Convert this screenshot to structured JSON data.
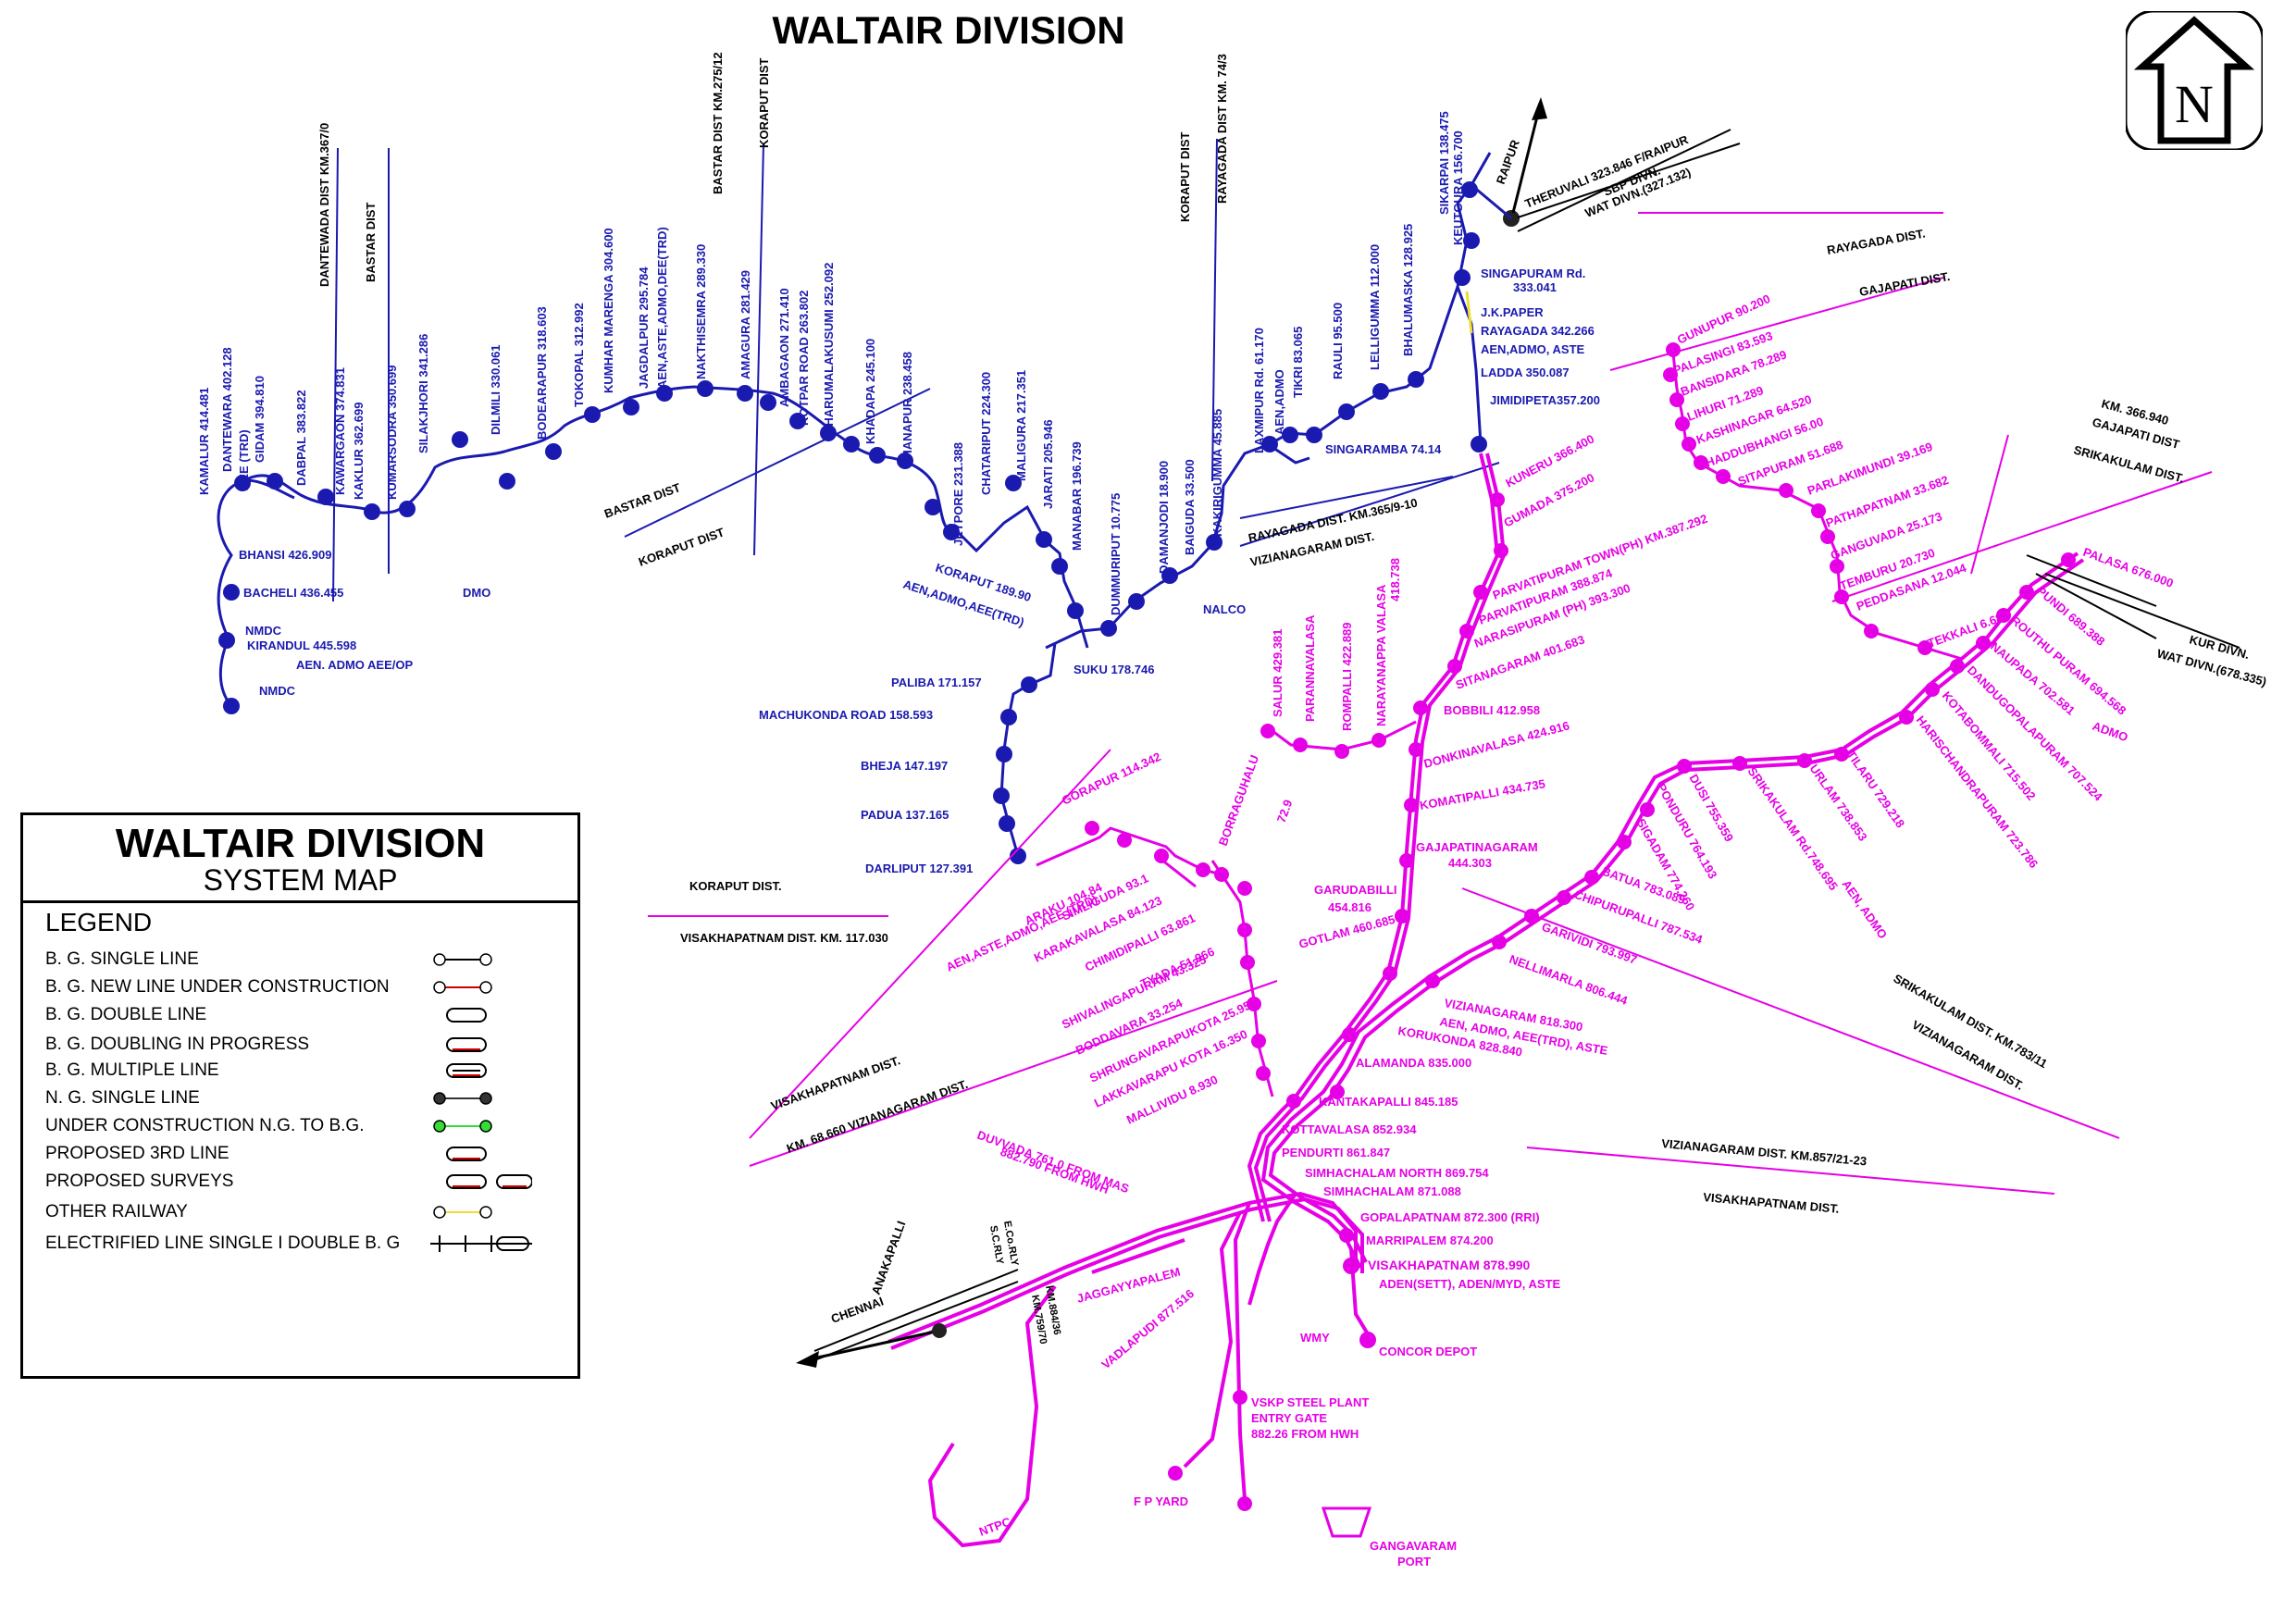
{
  "title": "WALTAIR DIVISION",
  "legend": {
    "title": "WALTAIR DIVISION",
    "subtitle": "SYSTEM MAP",
    "heading": "LEGEND",
    "items": [
      {
        "label": "B. G. SINGLE LINE",
        "style": "single",
        "color": "#000000"
      },
      {
        "label": "B. G. NEW LINE UNDER CONSTRUCTION",
        "style": "single",
        "color": "#cc0000"
      },
      {
        "label": "B. G. DOUBLE LINE",
        "style": "double",
        "color": "#000000"
      },
      {
        "label": "B. G. DOUBLING IN PROGRESS",
        "style": "double-red",
        "color": "#000000"
      },
      {
        "label": "B. G. MULTIPLE LINE",
        "style": "multiple",
        "color": "#000000"
      },
      {
        "label": "N. G. SINGLE LINE",
        "style": "ng",
        "color": "#333333"
      },
      {
        "label": "UNDER CONSTRUCTION N.G. TO B.G.",
        "style": "green",
        "color": "#33dd33"
      },
      {
        "label": "PROPOSED 3RD LINE",
        "style": "third",
        "color": "#cc0000"
      },
      {
        "label": "PROPOSED SURVEYS",
        "style": "survey",
        "color": "#cc0000"
      },
      {
        "label": "OTHER RAILWAY",
        "style": "yellow",
        "color": "#eedd33"
      },
      {
        "label": "ELECTRIFIED LINE SINGLE I DOUBLE B. G",
        "style": "electric",
        "color": "#000000"
      }
    ]
  },
  "north_symbol": "N",
  "colors": {
    "ecor_blue": "#1a1ab0",
    "ecor_magenta": "#e600e6",
    "boundary": "#1a1ab0",
    "ink": "#000000"
  },
  "labels": {
    "kamalur": "KAMALUR 414.481",
    "dantewara": "DANTEWARA 402.128",
    "aee_trd": "AEE (TRD)",
    "gidam": "GIDAM 394.810",
    "dabpal": "DABPAL 383.822",
    "kawaragaon": "KAWARGAON 374.831",
    "kaklur": "KAKLUR 362.699",
    "kumarsodra": "KUMARSODRA 350.699",
    "silakjhori": "SILAKJHORI 341.286",
    "dilmili": "DILMILI 330.061",
    "bodearapur": "BODEARAPUR 318.603",
    "tokopal": "TOKOPAL 312.992",
    "kumhar": "KUMHAR MARENGA 304.600",
    "jagdalpur": "JAGDALPUR 295.784",
    "jagdalpur2": "AEN,ASTE,ADMO,DEE(TRD)",
    "nakthisemra": "NAKTHISEMRA 289.330",
    "amaguda": "AMAGURA 281.429",
    "ambagaon": "AMBAGAON 271.410",
    "kotpar": "KOTPAR ROAD 263.802",
    "charumal": "CHARUMALAKUSUMI 252.092",
    "khadapa": "KHADAPA 245.100",
    "dhanapur": "DHANAPUR 238.458",
    "jeypore": "JEYPORE 231.388",
    "chataripu": "CHATARIPUT 224.300",
    "maliguda": "MALIGURA 217.351",
    "jarati": "JARATI 205.946",
    "manabar": "MANABAR 196.739",
    "dummuriput": "DUMMURIPUT 10.775",
    "damanjodi": "DAMANJODI 18.900",
    "baiguda": "BAIGUDA 33.500",
    "kakirigumma": "KAKIRIGUMMA 45.885",
    "laxmipur": "LAXMIPUR Rd. 61.170",
    "aen_admo_a": "AEN,ADMO",
    "tikri": "TIKRI 83.065",
    "rauli": "RAULI 95.500",
    "lelligumma": "LELLIGUMMA 112.000",
    "bhalumaska": "BHALUMASKA 128.925",
    "sikarpai": "SIKARPAI 138.475",
    "keutgura": "KEUTGURA 156.700",
    "singapuram": "SINGAPURAM Rd.",
    "singapuram2": "333.041",
    "jkpaper": "J.K.PAPER",
    "rayagada": "RAYAGADA 342.266",
    "rayagada2": "AEN,ADMO, ASTE",
    "ladda": "LADDA 350.087",
    "jimidipeta": "JIMIDIPETA357.200",
    "singaramba": "SINGARAMBA 74.14",
    "theruvali": "THERUVALI 323.846 F/RAIPUR",
    "sbp_divn": "SBP DIVN.",
    "wat_divn": "WAT DIVN.(327.132)",
    "raipur": "RAIPUR",
    "rayagada_dist": "RAYAGADA DIST.",
    "gajapati_dist": "GAJAPATI DIST.",
    "bhansi": "BHANSI 426.909",
    "bacheli": "BACHELI 436.455",
    "dmo": "DMO",
    "nmdc1": "NMDC",
    "kirandul": "KIRANDUL 445.598",
    "aen_admo_aeeop": "AEN. ADMO  AEE/OP",
    "nmdc2": "NMDC",
    "koraput": "KORAPUT 189.90",
    "koraput2": "AEN,ADMO,AEE(TRD)",
    "nalco": "NALCO",
    "suku": "SUKU 178.746",
    "paliba": "PALIBA 171.157",
    "machukonda": "MACHUKONDA ROAD 158.593",
    "bheja": "BHEJA 147.197",
    "padua": "PADUA 137.165",
    "darliput": "DARLIPUT 127.391",
    "dantewada_dist": "DANTEWADA DIST KM.367/0",
    "bastar_dist_top": "BASTAR DIST",
    "bastar_dist_km": "BASTAR DIST KM.275/12",
    "koraput_dist_top": "KORAPUT DIST",
    "koraput_dist_km": "KORAPUT DIST",
    "rayagada_dist_km": "RAYAGADA DIST KM. 74/3",
    "bastar_dist_mid": "BASTAR DIST",
    "koraput_dist_mid": "KORAPUT DIST",
    "rayagada_km365": "RAYAGADA DIST. KM.365/9-10",
    "vizianagaram_dist_a": "VIZIANAGARAM DIST.",
    "kuneru": "KUNERU 366.400",
    "gumada": "GUMADA 375.200",
    "parvatipuram_town": "PARVATIPURAM TOWN(PH) KM.387.292",
    "parvatipuram": "PARVATIPURAM 388.874",
    "narasipuram": "NARASIPURAM (PH) 393.300",
    "sitanagaram": "SITANAGARAM 401.683",
    "bobbili": "BOBBILI 412.958",
    "donkinavalasa": "DONKINAVALASA 424.916",
    "komatipalli": "KOMATIPALLI 434.735",
    "gajapatinagaram": "GAJAPATINAGARAM",
    "gajapatinagaram2": "444.303",
    "garudabilli": "GARUDABILLI",
    "garudabilli2": "454.816",
    "gotlam": "GOTLAM 460.685",
    "salur": "SALUR 429.381",
    "parannavalasa": "PARANNAVALASA",
    "rompalli": "ROMPALLI 422.889",
    "narayanappa": "NARAYANAPPA VALASA",
    "narayanappa2": "418.738",
    "gunupur": "GUNUPUR 90.200",
    "palasingi": "PALASINGI 83.593",
    "bansidara": "BANSIDARA 78.289",
    "lihuri": "LIHURI 71.289",
    "kashinagar": "KASHINAGAR 64.520",
    "haddubhangi": "HADDUBHANGI 56.00",
    "sitapuram": "SITAPURAM 51.688",
    "parlakimundi": "PARLAKIMUNDI 39.169",
    "pathapatnam": "PATHAPATNAM 33.682",
    "ganguvada": "GANGUVADA 25.173",
    "temburu": "TEMBURU 20.730",
    "peddasana": "PEDDASANA 12.044",
    "tekkali": "TEKKALI 6.68",
    "km366": "KM. 366.940",
    "gajapati_dist2": "GAJAPATI DIST",
    "srikakulam_dist": "SRIKAKULAM DIST.",
    "palasa": "PALASA 676.000",
    "pundi": "PUNDI 689.388",
    "routhu": "ROUTHU PURAM 694.568",
    "naupada": "NAUPADA 702.581",
    "admo": "ADMO",
    "dandugopalapuram": "DANDUGOPALAPURAM 707.524",
    "kotabommali": "KOTABOMMALI 715.502",
    "harischandrapuram": "HARISCHANDRAPURAM 723.786",
    "tilaru": "TILARU 729.218",
    "urlam": "URLAM 738.853",
    "srikakulam_rd": "SRIKAKULAM Rd.748.695",
    "aen_admo_b": "AEN, ADMO",
    "dusi": "DUSI 755.359",
    "ponduru": "PONDURU 764.193",
    "sigadam": "SIGADAM 774.260",
    "batua": "BATUA 783.089",
    "chipurupalli": "CHIPURUPALLI 787.534",
    "garividi": "GARIVIDI 793.997",
    "nellimarla": "NELLIMARLA 806.444",
    "vizianagaram": "VIZIANAGARAM 818.300",
    "vizianagaram2": "AEN, ADMO, AEE(TRD), ASTE",
    "korukonda": "KORUKONDA 828.840",
    "alamanda": "ALAMANDA 835.000",
    "kantakapalli": "KANTAKAPALLI 845.185",
    "kottavalasa": "KOTTAVALASA 852.934",
    "pendurti": "PENDURTI 861.847",
    "simhachalam_north": "SIMHACHALAM NORTH 869.754",
    "simhachalam": "SIMHACHALAM 871.088",
    "gopalapatnam": "GOPALAPATNAM 872.300 (RRI)",
    "marripalem": "MARRIPALEM 874.200",
    "visakhapatnam": "VISAKHAPATNAM 878.990",
    "visakhapatnam2": "ADEN(SETT), ADEN/MYD, ASTE",
    "concor": "CONCOR DEPOT",
    "wmy": "WMY",
    "kur_divn": "KUR DIVN.",
    "wat_divn2": "WAT DIVN.(678.335)",
    "srikakulam_km": "SRIKAKULAM DIST. KM.783/11",
    "vizianagaram_dist_b": "VIZIANAGARAM DIST.",
    "vizianagaram_km857": "VIZIANAGARAM DIST. KM.857/21-23",
    "visakhapatnam_dist": "VISAKHAPATNAM DIST.",
    "gorapur": "GORAPUR 114.342",
    "borraguhalu": "BORRAGUHALU",
    "borraguhalu2": "72.9",
    "araku": "ARAKU 104.84",
    "araku2": "AEN,ASTE,ADMO,AEE (TRD)",
    "simliguda": "SIMLIGUDA 93.1",
    "karakavalasa": "KARAKAVALASA 84.123",
    "chimidipalli": "CHIMIDIPALLI 63.861",
    "tyada": "TYADA 51.966",
    "shivalingapuram": "SHIVALINGAPURAM 43.325",
    "boddavara": "BODDAVARA 33.254",
    "shrungavarapukota": "SHRUNGAVARAPUKOTA 25.959",
    "lakkavarapu": "LAKKAVARAPU KOTA 16.350",
    "mallividu": "MALLIVIDU 8.930",
    "koraput_dist_b": "KORAPUT DIST.",
    "visakhapatnam_km117": "VISAKHAPATNAM DIST. KM. 117.030",
    "visakhapatnam_dist_b": "VISAKHAPATNAM DIST.",
    "km68": "KM. 68.660  VIZIANAGARAM DIST.",
    "duvvada": "DUVVADA 761.0 FROM MAS",
    "duvvada2": "882.790 FROM HWH",
    "jaggayyapalem": "JAGGAYYAPALEM",
    "vadlapudi": "VADLAPUDI 877.516",
    "vskp": "VSKP STEEL PLANT",
    "vskp2": "ENTRY GATE",
    "vskp3": "882.26 FROM HWH",
    "fpyard": "F P YARD",
    "ntpc": "NTPC",
    "gangavaram": "GANGAVARAM",
    "gangavaram2": "PORT",
    "anakapalli": "ANAKAPALLI",
    "chennai": "CHENNAI",
    "ecorly": "E.Co.RLY",
    "scrly": "S.C.RLY",
    "km88436": "KM.884/36",
    "km75970": "KM.759/70"
  }
}
